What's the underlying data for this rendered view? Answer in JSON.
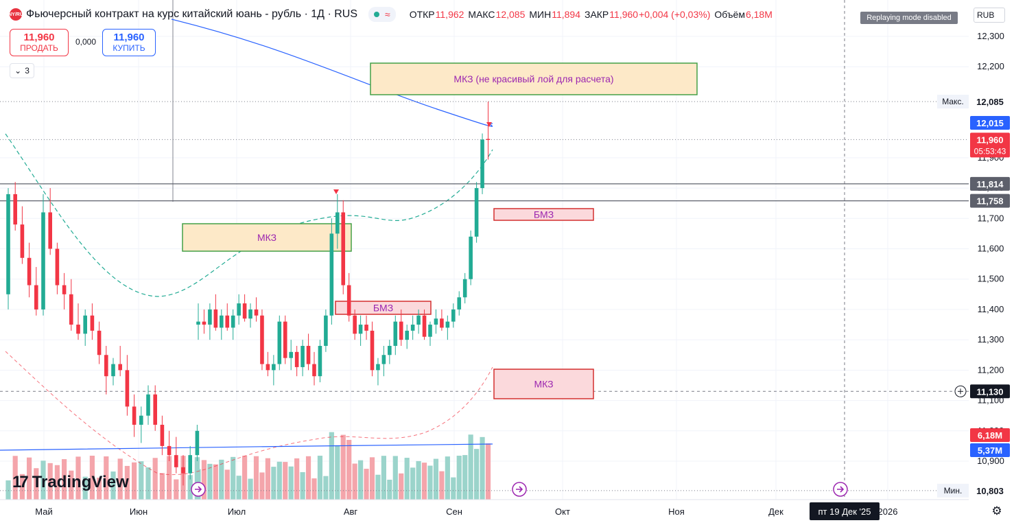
{
  "header": {
    "logo_text": "CNY/RUB",
    "title": "Фьючерсный контракт на курс китайский юань - рубль · 1Д · RUS",
    "ohlc": [
      {
        "label": "ОТКР",
        "value": "11,962"
      },
      {
        "label": "МАКС",
        "value": "12,085"
      },
      {
        "label": "МИН",
        "value": "11,894"
      },
      {
        "label": "ЗАКР",
        "value": "11,960"
      },
      {
        "label": "",
        "value": "+0,004 (+0,03%)"
      },
      {
        "label": "Объём",
        "value": "6,18M"
      }
    ],
    "mode_badge": "Replaying mode disabled",
    "currency_button": "RUB"
  },
  "trade": {
    "sell_price": "11,960",
    "sell_label": "ПРОДАТЬ",
    "spread": "0,000",
    "buy_price": "11,960",
    "buy_label": "КУПИТЬ"
  },
  "indicator_count": "3",
  "brand": "TradingView",
  "colors": {
    "up": "#22ab94",
    "down": "#f23645",
    "vol_up": "#9bd4cb",
    "vol_down": "#f4a5ab",
    "ma_blue": "#2962ff"
  },
  "chart_data": {
    "type": "candlestick",
    "timeframe": "1Д",
    "x_ticks": [
      "Май",
      "Июн",
      "Июл",
      "Авг",
      "Сен",
      "Окт",
      "Ноя",
      "Дек",
      "2026"
    ],
    "crosshair_date": "пт 19 Дек '25",
    "y_ticks": [
      "12,300",
      "12,200",
      "12,085",
      "11,900",
      "11,800",
      "11,700",
      "11,600",
      "11,500",
      "11,400",
      "11,300",
      "11,200",
      "11,100",
      "11,000",
      "10,900",
      "10,803"
    ],
    "ylim": [
      10,
      803,
      12,
      350
    ],
    "candles_ohlc": [
      [
        11.45,
        11.8,
        11.4,
        11.78
      ],
      [
        11.78,
        11.82,
        11.66,
        11.68
      ],
      [
        11.68,
        11.74,
        11.55,
        11.57
      ],
      [
        11.57,
        11.62,
        11.44,
        11.48
      ],
      [
        11.48,
        11.54,
        11.38,
        11.4
      ],
      [
        11.4,
        11.78,
        11.38,
        11.72
      ],
      [
        11.72,
        11.8,
        11.58,
        11.6
      ],
      [
        11.6,
        11.62,
        11.45,
        11.48
      ],
      [
        11.48,
        11.52,
        11.4,
        11.45
      ],
      [
        11.45,
        11.5,
        11.33,
        11.35
      ],
      [
        11.35,
        11.42,
        11.3,
        11.32
      ],
      [
        11.32,
        11.4,
        11.28,
        11.38
      ],
      [
        11.38,
        11.42,
        11.3,
        11.33
      ],
      [
        11.33,
        11.36,
        11.22,
        11.25
      ],
      [
        11.25,
        11.28,
        11.12,
        11.18
      ],
      [
        11.18,
        11.24,
        11.15,
        11.22
      ],
      [
        11.22,
        11.28,
        11.18,
        11.2
      ],
      [
        11.2,
        11.25,
        11.05,
        11.08
      ],
      [
        11.08,
        11.12,
        10.98,
        11.02
      ],
      [
        11.02,
        11.08,
        10.96,
        11.05
      ],
      [
        11.05,
        11.15,
        11.02,
        11.12
      ],
      [
        11.12,
        11.15,
        11.0,
        11.02
      ],
      [
        11.02,
        11.05,
        10.92,
        10.95
      ],
      [
        10.95,
        11.0,
        10.9,
        10.92
      ],
      [
        10.92,
        10.98,
        10.86,
        10.88
      ],
      [
        10.88,
        10.92,
        10.82,
        10.86
      ],
      [
        10.86,
        10.95,
        10.84,
        10.92
      ],
      [
        10.92,
        11.02,
        10.9,
        11.0
      ],
      [
        11.35,
        11.42,
        11.3,
        11.36
      ],
      [
        11.36,
        11.4,
        11.32,
        11.35
      ],
      [
        11.35,
        11.42,
        11.3,
        11.4
      ],
      [
        11.4,
        11.45,
        11.33,
        11.34
      ],
      [
        11.34,
        11.4,
        11.3,
        11.38
      ],
      [
        11.38,
        11.42,
        11.33,
        11.34
      ],
      [
        11.34,
        11.4,
        11.3,
        11.38
      ],
      [
        11.38,
        11.45,
        11.35,
        11.42
      ],
      [
        11.42,
        11.45,
        11.36,
        11.37
      ],
      [
        11.37,
        11.42,
        11.34,
        11.4
      ],
      [
        11.4,
        11.44,
        11.36,
        11.38
      ],
      [
        11.38,
        11.4,
        11.2,
        11.22
      ],
      [
        11.22,
        11.26,
        11.18,
        11.2
      ],
      [
        11.2,
        11.25,
        11.15,
        11.22
      ],
      [
        11.22,
        11.38,
        11.2,
        11.36
      ],
      [
        11.36,
        11.38,
        11.22,
        11.24
      ],
      [
        11.24,
        11.3,
        11.2,
        11.26
      ],
      [
        11.26,
        11.28,
        11.18,
        11.21
      ],
      [
        11.21,
        11.3,
        11.18,
        11.28
      ],
      [
        11.28,
        11.32,
        11.2,
        11.22
      ],
      [
        11.22,
        11.26,
        11.15,
        11.18
      ],
      [
        11.18,
        11.3,
        11.16,
        11.28
      ],
      [
        11.28,
        11.4,
        11.26,
        11.38
      ],
      [
        11.38,
        11.7,
        11.35,
        11.65
      ],
      [
        11.65,
        11.78,
        11.6,
        11.72
      ],
      [
        11.72,
        11.76,
        11.45,
        11.48
      ],
      [
        11.48,
        11.52,
        11.36,
        11.38
      ],
      [
        11.38,
        11.4,
        11.3,
        11.32
      ],
      [
        11.32,
        11.38,
        11.28,
        11.35
      ],
      [
        11.35,
        11.38,
        11.3,
        11.33
      ],
      [
        11.33,
        11.36,
        11.18,
        11.2
      ],
      [
        11.2,
        11.24,
        11.15,
        11.22
      ],
      [
        11.22,
        11.28,
        11.18,
        11.25
      ],
      [
        11.25,
        11.3,
        11.22,
        11.28
      ],
      [
        11.28,
        11.38,
        11.25,
        11.36
      ],
      [
        11.36,
        11.4,
        11.28,
        11.3
      ],
      [
        11.3,
        11.35,
        11.27,
        11.33
      ],
      [
        11.33,
        11.38,
        11.3,
        11.35
      ],
      [
        11.35,
        11.4,
        11.32,
        11.38
      ],
      [
        11.38,
        11.4,
        11.3,
        11.31
      ],
      [
        11.31,
        11.36,
        11.28,
        11.35
      ],
      [
        11.35,
        11.4,
        11.32,
        11.37
      ],
      [
        11.37,
        11.4,
        11.33,
        11.34
      ],
      [
        11.34,
        11.38,
        11.3,
        11.36
      ],
      [
        11.36,
        11.42,
        11.34,
        11.4
      ],
      [
        11.4,
        11.46,
        11.38,
        11.44
      ],
      [
        11.44,
        11.52,
        11.42,
        11.5
      ],
      [
        11.5,
        11.66,
        11.48,
        11.64
      ],
      [
        11.64,
        11.82,
        11.62,
        11.8
      ],
      [
        11.8,
        11.98,
        11.78,
        11.96
      ],
      [
        11.962,
        12.085,
        11.894,
        11.96
      ]
    ],
    "volume_trend": "rising into September, last bar 6,18M",
    "lines": [
      {
        "label": "Макс.",
        "value": "12,085",
        "style": "dotted"
      },
      {
        "label": "",
        "value": "12,015",
        "style": "ma",
        "color": "#2962ff"
      },
      {
        "label": "",
        "value": "11,960",
        "style": "dotted",
        "sub": "05:53:43"
      },
      {
        "label": "",
        "value": "11,814",
        "style": "solid"
      },
      {
        "label": "",
        "value": "11,758",
        "style": "solid"
      },
      {
        "label": "",
        "value": "11,130",
        "style": "dashed",
        "crosshair": true
      },
      {
        "label": "Мин.",
        "value": "10,803",
        "style": "dotted"
      }
    ],
    "volume_labels": [
      {
        "value": "6,18M",
        "color": "#f23645"
      },
      {
        "value": "5,37M",
        "color": "#2962ff"
      }
    ],
    "zones": [
      {
        "label": "МКЗ (не красивый лой для расчета)",
        "kind": "mkz"
      },
      {
        "label": "МКЗ",
        "kind": "mkz"
      },
      {
        "label": "БМЗ",
        "kind": "bmz"
      },
      {
        "label": "БМЗ",
        "kind": "bmz"
      },
      {
        "label": "МКЗ",
        "kind": "bmz"
      }
    ]
  }
}
